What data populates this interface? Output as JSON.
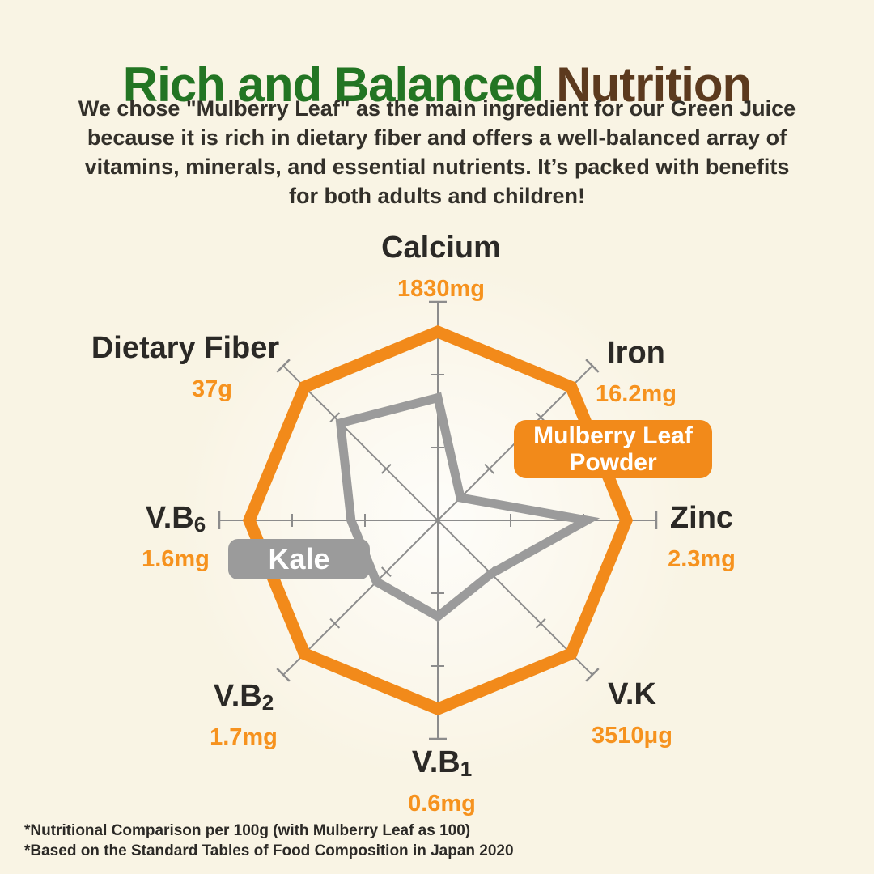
{
  "header": {
    "title_green": "Rich and Balanced",
    "title_brown": "Nutrition",
    "description_lines": [
      "We chose \"Mulberry Leaf\" as the main ingredient for our Green Juice",
      "because it is rich in dietary fiber and offers a well-balanced array of",
      "vitamins, minerals, and essential nutrients. It’s packed with benefits",
      "for both adults and children!"
    ]
  },
  "chart_data": {
    "type": "radar",
    "scale_note": "Nutritional comparison per 100g, normalized with Mulberry Leaf as 100",
    "axis_count": 8,
    "axis_color": "#8C8C8C",
    "axes": [
      {
        "label": "Calcium",
        "label_sub": "",
        "value_label": "1830mg"
      },
      {
        "label": "Iron",
        "label_sub": "",
        "value_label": "16.2mg"
      },
      {
        "label": "Zinc",
        "label_sub": "",
        "value_label": "2.3mg"
      },
      {
        "label": "V.K",
        "label_sub": "",
        "value_label": "3510μg"
      },
      {
        "label": "V.B",
        "label_sub": "1",
        "value_label": "0.6mg"
      },
      {
        "label": "V.B",
        "label_sub": "2",
        "value_label": "1.7mg"
      },
      {
        "label": "V.B",
        "label_sub": "6",
        "value_label": "1.6mg"
      },
      {
        "label": "Dietary Fiber",
        "label_sub": "",
        "value_label": "37g"
      }
    ],
    "series": [
      {
        "name": "Mulberry Leaf Powder",
        "badge_lines": [
          "Mulberry Leaf",
          "Powder"
        ],
        "color": "#F28A1A",
        "values": [
          100,
          100,
          100,
          100,
          100,
          100,
          100,
          100
        ]
      },
      {
        "name": "Kale",
        "badge_lines": [
          "Kale"
        ],
        "color": "#9B9B9B",
        "values": [
          65,
          17,
          79,
          40,
          51,
          46,
          46,
          73
        ]
      }
    ]
  },
  "colors": {
    "background": "#F9F4E4",
    "title_green": "#237523",
    "title_brown": "#5C3A1E",
    "accent_orange": "#F6921E",
    "kale_gray": "#9B9B9B"
  },
  "footnotes": [
    "*Nutritional Comparison per 100g (with Mulberry Leaf as 100)",
    "*Based on the Standard Tables of Food Composition in Japan 2020"
  ]
}
